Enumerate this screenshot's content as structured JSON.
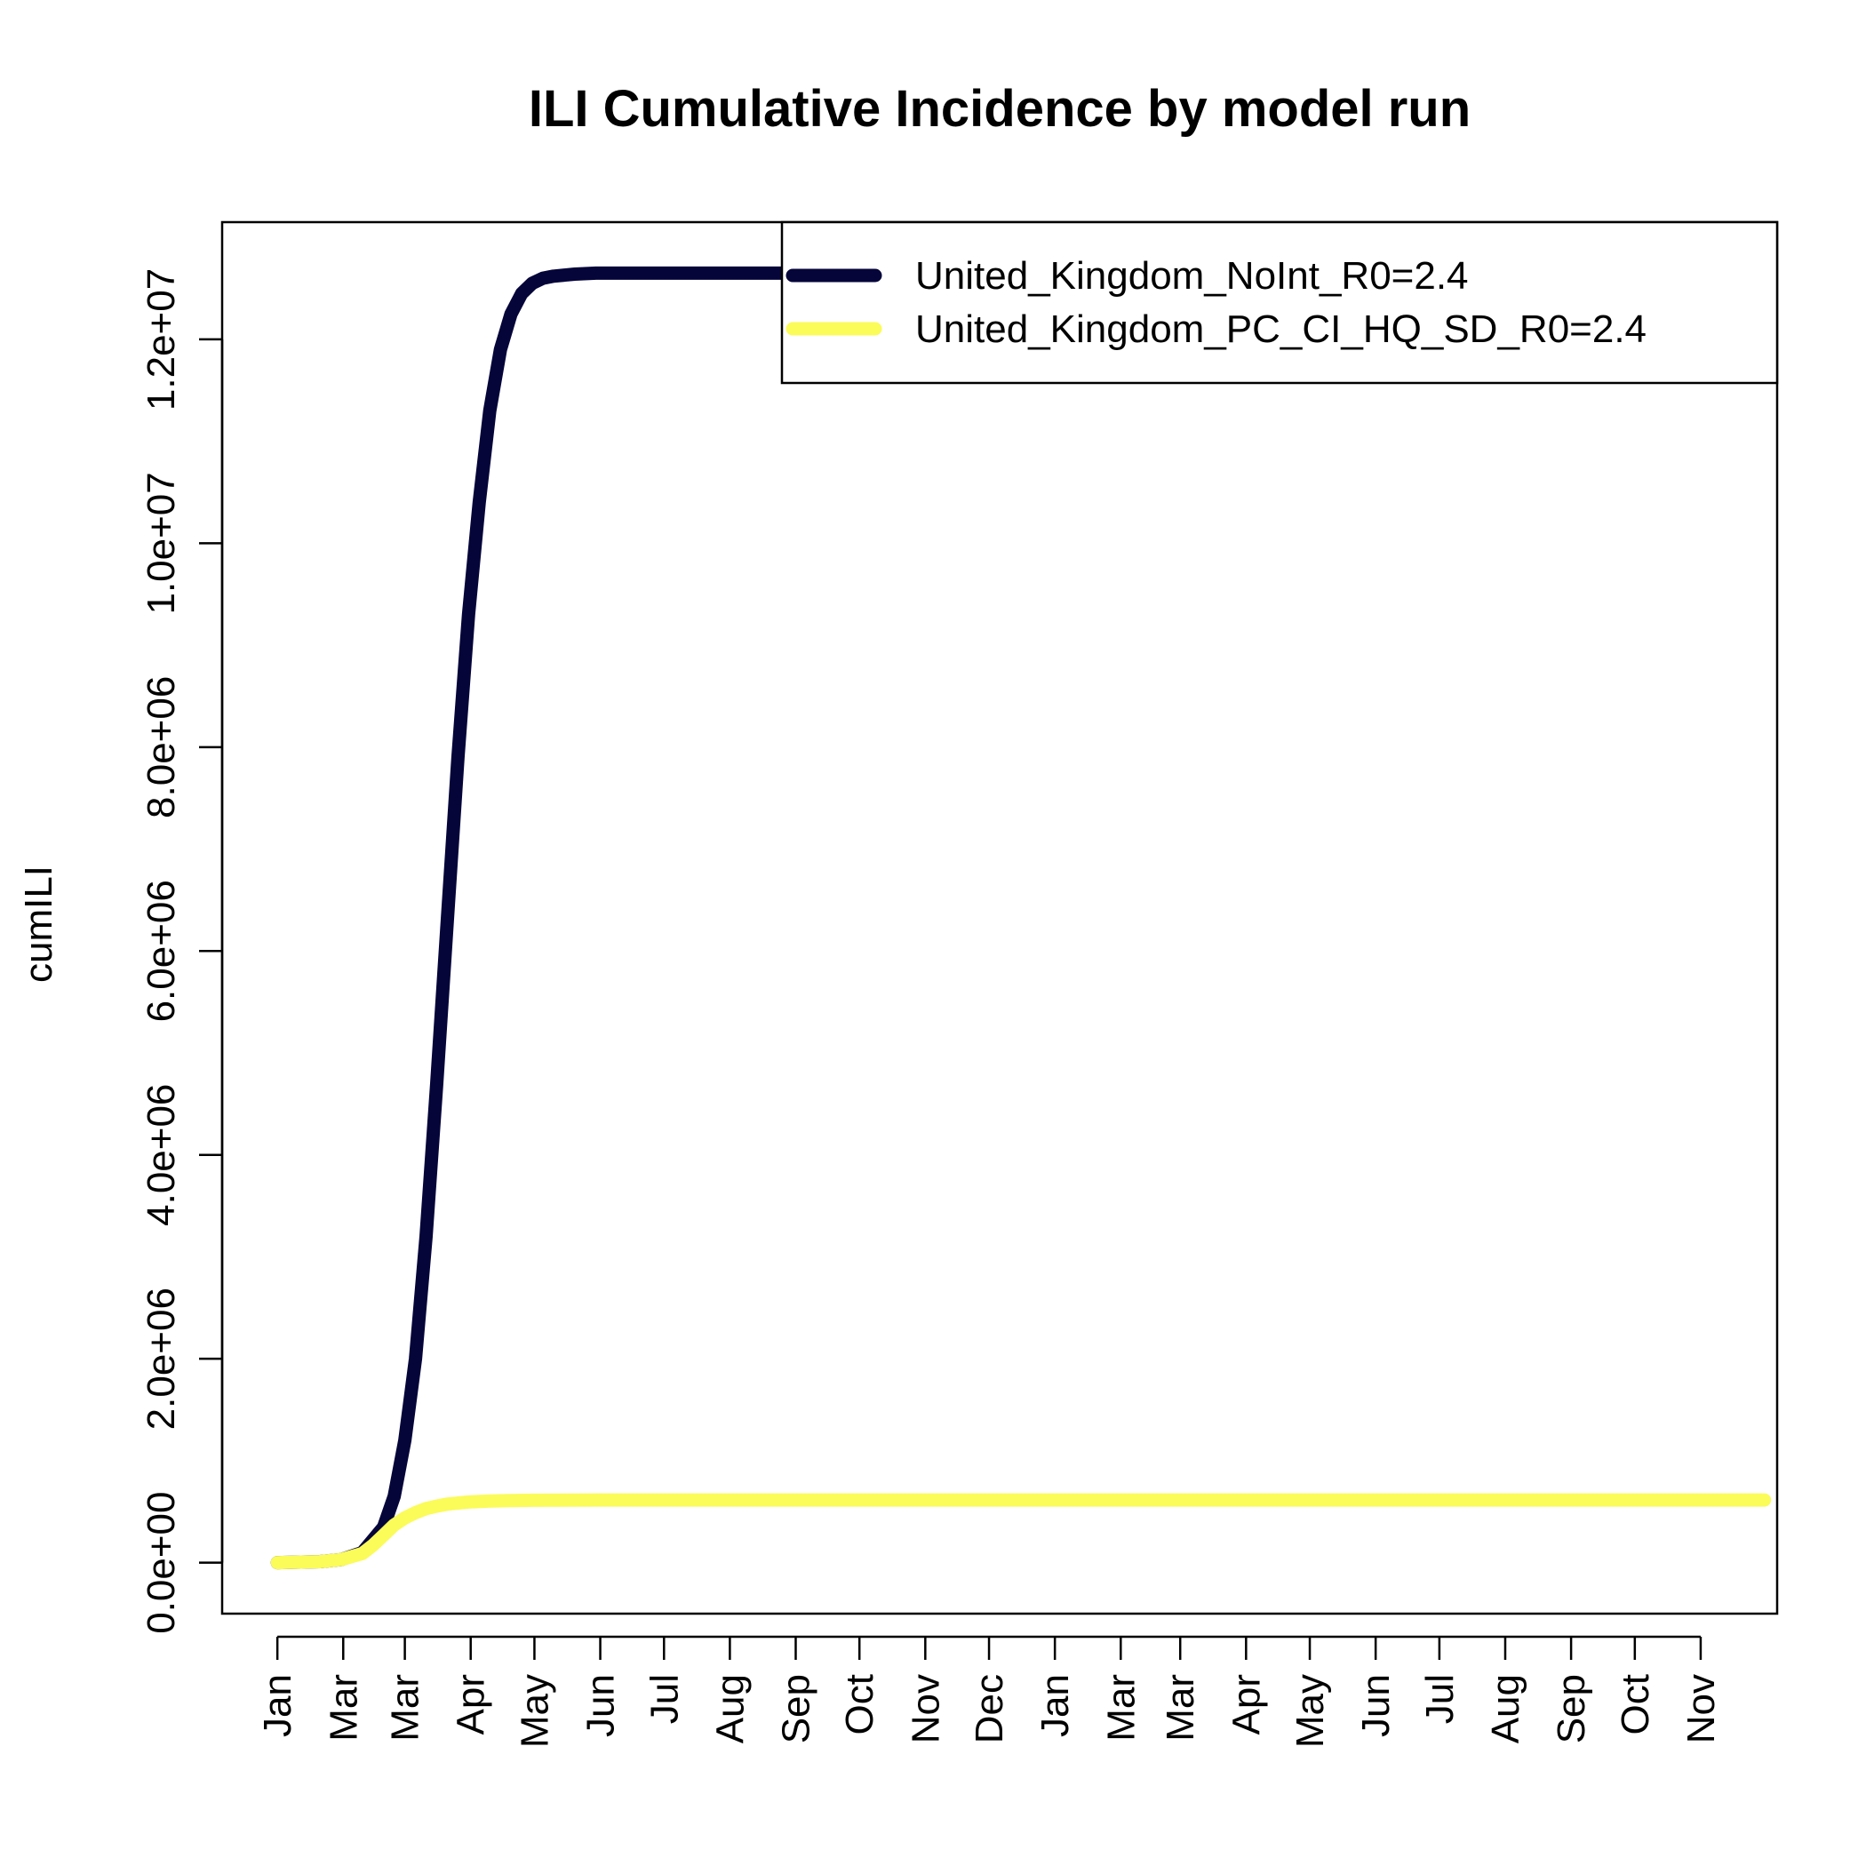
{
  "chart_data": {
    "type": "line",
    "title": "ILI Cumulative Incidence by model run",
    "xlabel": "",
    "ylabel": "cumILI",
    "y_ticks": [
      0,
      2000000,
      4000000,
      6000000,
      8000000,
      10000000,
      12000000
    ],
    "y_tick_labels": [
      "0.0e+00",
      "2.0e+06",
      "4.0e+06",
      "6.0e+06",
      "8.0e+06",
      "1.0e+07",
      "1.2e+07"
    ],
    "ylim": [
      -500000,
      13150000
    ],
    "x_unit": "day",
    "xlim": [
      -26,
      706
    ],
    "x_ticks": [
      0,
      31,
      60,
      91,
      121,
      152,
      182,
      213,
      244,
      274,
      305,
      335,
      366,
      397,
      425,
      456,
      486,
      517,
      547,
      578,
      609,
      639,
      670
    ],
    "x_tick_labels": [
      "Jan",
      "Mar",
      "Mar",
      "Apr",
      "May",
      "Jun",
      "Jul",
      "Aug",
      "Sep",
      "Oct",
      "Nov",
      "Dec",
      "Jan",
      "Mar",
      "Mar",
      "Apr",
      "May",
      "Jun",
      "Jul",
      "Aug",
      "Sep",
      "Oct",
      "Nov"
    ],
    "grid": false,
    "legend_position": "top-right",
    "series": [
      {
        "name": "United_Kingdom_NoInt_R0=2.4",
        "color": "#0d0887",
        "stroke": "#05053a",
        "x": [
          0,
          20,
          30,
          40,
          50,
          55,
          60,
          65,
          70,
          75,
          80,
          85,
          90,
          95,
          100,
          105,
          110,
          115,
          120,
          125,
          130,
          140,
          150,
          170,
          200,
          250,
          300,
          330
        ],
        "y": [
          0,
          10000,
          30000,
          100000,
          350000,
          650000,
          1200000,
          2000000,
          3200000,
          4700000,
          6300000,
          7900000,
          9300000,
          10400000,
          11300000,
          11900000,
          12250000,
          12450000,
          12550000,
          12600000,
          12620000,
          12640000,
          12650000,
          12650000,
          12650000,
          12650000,
          12650000,
          12650000
        ]
      },
      {
        "name": "United_Kingdom_PC_CI_HQ_SD_R0=2.4",
        "color": "#f0f921",
        "stroke": "#fbfb5a",
        "x": [
          0,
          20,
          30,
          40,
          45,
          50,
          55,
          60,
          65,
          70,
          75,
          80,
          90,
          100,
          110,
          120,
          150,
          200,
          300,
          400,
          500,
          600,
          700
        ],
        "y": [
          0,
          10000,
          30000,
          90000,
          170000,
          270000,
          370000,
          440000,
          490000,
          530000,
          555000,
          575000,
          595000,
          605000,
          610000,
          612000,
          615000,
          615000,
          615000,
          615000,
          615000,
          615000,
          615000
        ]
      }
    ]
  }
}
